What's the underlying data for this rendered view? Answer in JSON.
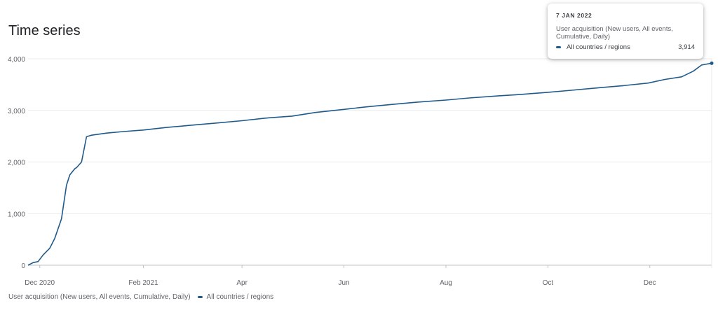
{
  "colors": {
    "series": "#1f5a8b",
    "grid": "#e8eaed",
    "axis": "#5f6368"
  },
  "title": "Time series",
  "legend": {
    "metric": "User acquisition (New users, All events, Cumulative, Daily)",
    "series": "All countries / regions"
  },
  "tooltip": {
    "date": "7 JAN 2022",
    "metric": "User acquisition (New users, All events, Cumulative, Daily)",
    "series": "All countries / regions",
    "value": "3,914"
  },
  "chart_data": {
    "type": "line",
    "title": "Time series",
    "xlabel": "",
    "ylabel": "",
    "ylim": [
      0,
      4000
    ],
    "grid": true,
    "legend_position": "bottom-left",
    "y_ticks": [
      0,
      1000,
      2000,
      3000,
      4000
    ],
    "y_tick_labels": [
      "0",
      "1,000",
      "2,000",
      "3,000",
      "4,000"
    ],
    "x_ticks": [
      "2020-12-01",
      "2021-02-01",
      "2021-04-01",
      "2021-06-01",
      "2021-08-01",
      "2021-10-01",
      "2021-12-01"
    ],
    "x_tick_labels": [
      "Dec 2020",
      "Feb 2021",
      "Apr",
      "Jun",
      "Aug",
      "Oct",
      "Dec"
    ],
    "xlim": [
      "2020-11-24",
      "2022-01-07"
    ],
    "series": [
      {
        "name": "All countries / regions",
        "x": [
          "2020-11-24",
          "2020-11-27",
          "2020-11-30",
          "2020-12-03",
          "2020-12-07",
          "2020-12-10",
          "2020-12-14",
          "2020-12-17",
          "2020-12-19",
          "2020-12-22",
          "2020-12-23",
          "2020-12-26",
          "2020-12-29",
          "2020-12-30",
          "2020-12-31",
          "2021-01-01",
          "2021-01-10",
          "2021-01-20",
          "2021-02-01",
          "2021-02-15",
          "2021-03-01",
          "2021-03-15",
          "2021-04-01",
          "2021-04-15",
          "2021-05-01",
          "2021-05-15",
          "2021-06-01",
          "2021-06-15",
          "2021-07-01",
          "2021-07-15",
          "2021-08-01",
          "2021-08-15",
          "2021-09-01",
          "2021-09-15",
          "2021-10-01",
          "2021-10-15",
          "2021-11-01",
          "2021-11-15",
          "2021-11-30",
          "2021-12-10",
          "2021-12-20",
          "2021-12-27",
          "2022-01-01",
          "2022-01-07"
        ],
        "y": [
          0,
          50,
          70,
          200,
          330,
          520,
          900,
          1550,
          1750,
          1870,
          1890,
          2000,
          2490,
          2500,
          2510,
          2520,
          2560,
          2590,
          2620,
          2670,
          2710,
          2750,
          2800,
          2850,
          2890,
          2960,
          3020,
          3070,
          3120,
          3160,
          3200,
          3240,
          3280,
          3310,
          3350,
          3390,
          3440,
          3480,
          3530,
          3600,
          3650,
          3760,
          3880,
          3914
        ]
      }
    ]
  }
}
